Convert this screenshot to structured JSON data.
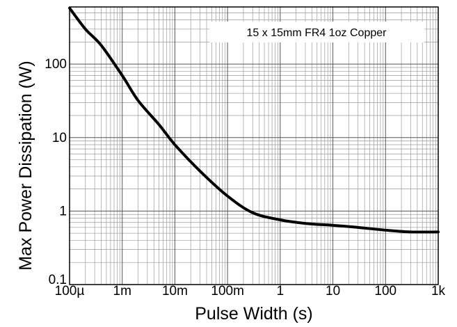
{
  "chart_data": {
    "type": "line",
    "title": "",
    "xlabel": "Pulse Width (s)",
    "ylabel": "Max Power Dissipation (W)",
    "xscale": "log",
    "yscale": "log",
    "xlim": [
      0.0001,
      1000
    ],
    "ylim": [
      0.1,
      600
    ],
    "xticks": [
      0.0001,
      0.001,
      0.01,
      0.1,
      1,
      10,
      100,
      1000
    ],
    "xtick_labels": [
      "100µ",
      "1m",
      "10m",
      "100m",
      "1",
      "10",
      "100",
      "1k"
    ],
    "yticks": [
      0.1,
      1,
      10,
      100
    ],
    "ytick_labels": [
      "0.1",
      "1",
      "10",
      "100"
    ],
    "grid": true,
    "legend_position": "top-right",
    "annotation": "15 x 15mm FR4 1oz Copper",
    "series": [
      {
        "x": [
          0.0001,
          0.0002,
          0.0004,
          0.001,
          0.002,
          0.005,
          0.01,
          0.03,
          0.1,
          0.3,
          1,
          3,
          10,
          30,
          100,
          300,
          1000
        ],
        "y": [
          580,
          300,
          180,
          70,
          32,
          15,
          8,
          3.5,
          1.6,
          0.95,
          0.76,
          0.68,
          0.64,
          0.6,
          0.55,
          0.52,
          0.52
        ]
      }
    ]
  }
}
